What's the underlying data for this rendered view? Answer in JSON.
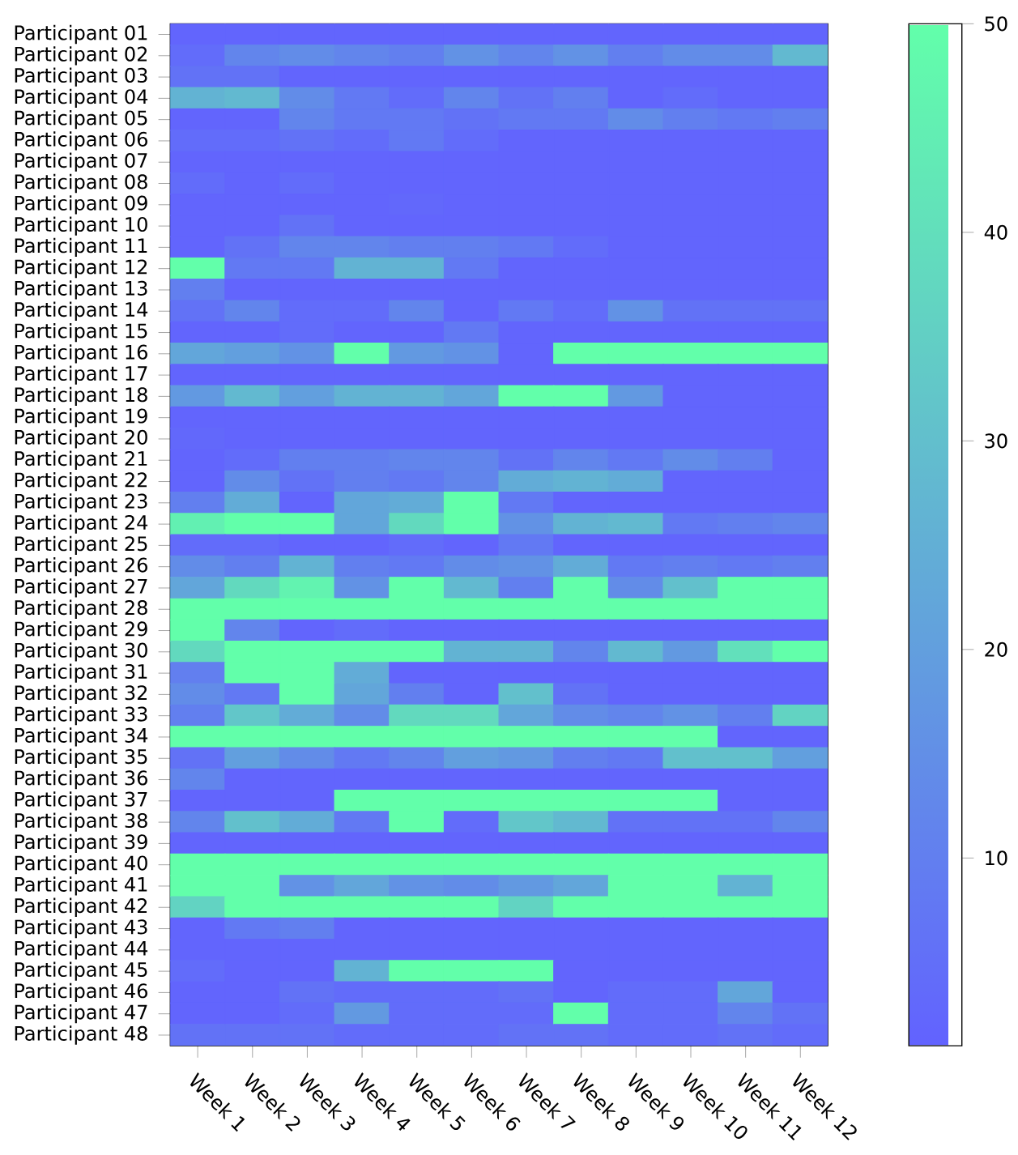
{
  "chart_data": {
    "type": "heatmap",
    "categories": [
      "Week 1",
      "Week 2",
      "Week 3",
      "Week 4",
      "Week 5",
      "Week 6",
      "Week 7",
      "Week 8",
      "Week 9",
      "Week 10",
      "Week 11",
      "Week 12"
    ],
    "y_categories": [
      "Participant 01",
      "Participant 02",
      "Participant 03",
      "Participant 04",
      "Participant 05",
      "Participant 06",
      "Participant 07",
      "Participant 08",
      "Participant 09",
      "Participant 10",
      "Participant 11",
      "Participant 12",
      "Participant 13",
      "Participant 14",
      "Participant 15",
      "Participant 16",
      "Participant 17",
      "Participant 18",
      "Participant 19",
      "Participant 20",
      "Participant 21",
      "Participant 22",
      "Participant 23",
      "Participant 24",
      "Participant 25",
      "Participant 26",
      "Participant 27",
      "Participant 28",
      "Participant 29",
      "Participant 30",
      "Participant 31",
      "Participant 32",
      "Participant 33",
      "Participant 34",
      "Participant 35",
      "Participant 36",
      "Participant 37",
      "Participant 38",
      "Participant 39",
      "Participant 40",
      "Participant 41",
      "Participant 42",
      "Participant 43",
      "Participant 44",
      "Participant 45",
      "Participant 46",
      "Participant 47",
      "Participant 48"
    ],
    "cells": [
      [
        2,
        2,
        2,
        2,
        2,
        2,
        2,
        2,
        2,
        2,
        2,
        2
      ],
      [
        4,
        12,
        14,
        12,
        10,
        16,
        12,
        16,
        10,
        14,
        14,
        28
      ],
      [
        6,
        6,
        2,
        2,
        2,
        2,
        2,
        2,
        2,
        2,
        2,
        2
      ],
      [
        26,
        28,
        14,
        8,
        4,
        12,
        6,
        10,
        2,
        4,
        2,
        2
      ],
      [
        2,
        2,
        12,
        8,
        8,
        6,
        8,
        8,
        14,
        10,
        8,
        10
      ],
      [
        4,
        4,
        6,
        4,
        8,
        4,
        2,
        2,
        2,
        2,
        2,
        2
      ],
      [
        2,
        2,
        2,
        2,
        2,
        2,
        2,
        2,
        2,
        2,
        2,
        2
      ],
      [
        4,
        2,
        4,
        2,
        2,
        2,
        2,
        2,
        2,
        2,
        2,
        2
      ],
      [
        2,
        2,
        2,
        2,
        3,
        2,
        2,
        2,
        2,
        2,
        2,
        2
      ],
      [
        2,
        2,
        6,
        2,
        2,
        2,
        2,
        2,
        2,
        2,
        2,
        2
      ],
      [
        2,
        6,
        12,
        12,
        10,
        10,
        8,
        4,
        2,
        2,
        2,
        2
      ],
      [
        50,
        8,
        8,
        26,
        26,
        8,
        2,
        2,
        2,
        2,
        2,
        2
      ],
      [
        10,
        2,
        2,
        2,
        2,
        2,
        2,
        2,
        2,
        2,
        2,
        2
      ],
      [
        6,
        12,
        4,
        4,
        12,
        2,
        8,
        4,
        16,
        6,
        6,
        6
      ],
      [
        2,
        2,
        4,
        2,
        2,
        8,
        2,
        2,
        2,
        2,
        2,
        2
      ],
      [
        22,
        20,
        16,
        50,
        18,
        16,
        2,
        50,
        50,
        50,
        50,
        50
      ],
      [
        2,
        2,
        2,
        2,
        2,
        2,
        2,
        2,
        2,
        2,
        2,
        2
      ],
      [
        18,
        28,
        20,
        26,
        26,
        22,
        50,
        50,
        18,
        2,
        2,
        2
      ],
      [
        2,
        2,
        2,
        2,
        2,
        2,
        2,
        2,
        2,
        2,
        2,
        2
      ],
      [
        3,
        2,
        2,
        2,
        2,
        2,
        2,
        2,
        2,
        2,
        2,
        2
      ],
      [
        2,
        4,
        10,
        10,
        12,
        12,
        6,
        12,
        8,
        14,
        10,
        2
      ],
      [
        2,
        14,
        6,
        10,
        8,
        12,
        24,
        26,
        24,
        2,
        2,
        2
      ],
      [
        10,
        24,
        2,
        22,
        24,
        50,
        8,
        2,
        2,
        2,
        2,
        2
      ],
      [
        45,
        50,
        50,
        22,
        38,
        50,
        16,
        26,
        28,
        8,
        10,
        12
      ],
      [
        4,
        4,
        2,
        2,
        4,
        2,
        8,
        2,
        2,
        2,
        2,
        2
      ],
      [
        14,
        10,
        26,
        10,
        8,
        14,
        16,
        24,
        8,
        10,
        8,
        10
      ],
      [
        22,
        38,
        46,
        16,
        50,
        28,
        10,
        50,
        14,
        30,
        50,
        50
      ],
      [
        50,
        50,
        50,
        50,
        50,
        50,
        50,
        50,
        50,
        50,
        50,
        50
      ],
      [
        50,
        12,
        2,
        4,
        2,
        2,
        2,
        2,
        2,
        2,
        2,
        2
      ],
      [
        38,
        50,
        50,
        50,
        50,
        26,
        26,
        12,
        28,
        18,
        40,
        50
      ],
      [
        10,
        50,
        50,
        24,
        2,
        2,
        2,
        2,
        2,
        2,
        2,
        2
      ],
      [
        14,
        8,
        50,
        22,
        10,
        2,
        30,
        6,
        2,
        2,
        2,
        2
      ],
      [
        10,
        32,
        24,
        14,
        38,
        38,
        22,
        14,
        12,
        16,
        10,
        36
      ],
      [
        50,
        50,
        50,
        50,
        50,
        50,
        50,
        50,
        50,
        50,
        2,
        2
      ],
      [
        6,
        20,
        14,
        8,
        12,
        20,
        18,
        10,
        8,
        30,
        30,
        20
      ],
      [
        12,
        2,
        2,
        2,
        2,
        2,
        2,
        2,
        2,
        2,
        2,
        2
      ],
      [
        2,
        2,
        2,
        50,
        50,
        50,
        50,
        50,
        50,
        50,
        2,
        2
      ],
      [
        12,
        30,
        24,
        8,
        50,
        4,
        32,
        28,
        6,
        6,
        6,
        12
      ],
      [
        2,
        2,
        2,
        2,
        2,
        2,
        2,
        2,
        2,
        2,
        2,
        2
      ],
      [
        50,
        50,
        50,
        50,
        50,
        50,
        50,
        50,
        50,
        50,
        50,
        50
      ],
      [
        50,
        50,
        16,
        22,
        16,
        14,
        18,
        22,
        50,
        50,
        26,
        50
      ],
      [
        36,
        50,
        50,
        50,
        50,
        50,
        36,
        50,
        50,
        50,
        50,
        50
      ],
      [
        2,
        8,
        10,
        2,
        2,
        2,
        2,
        2,
        2,
        2,
        2,
        2
      ],
      [
        2,
        2,
        2,
        2,
        2,
        2,
        2,
        2,
        2,
        2,
        2,
        2
      ],
      [
        4,
        2,
        2,
        26,
        50,
        50,
        50,
        2,
        2,
        2,
        2,
        2
      ],
      [
        2,
        2,
        6,
        4,
        4,
        4,
        6,
        2,
        4,
        4,
        22,
        2
      ],
      [
        2,
        2,
        4,
        18,
        4,
        4,
        4,
        50,
        4,
        4,
        12,
        6
      ],
      [
        6,
        6,
        6,
        4,
        4,
        4,
        6,
        6,
        4,
        4,
        6,
        4
      ]
    ],
    "clim": [
      1,
      50
    ],
    "cticks": [
      10,
      20,
      30,
      40,
      50
    ]
  }
}
